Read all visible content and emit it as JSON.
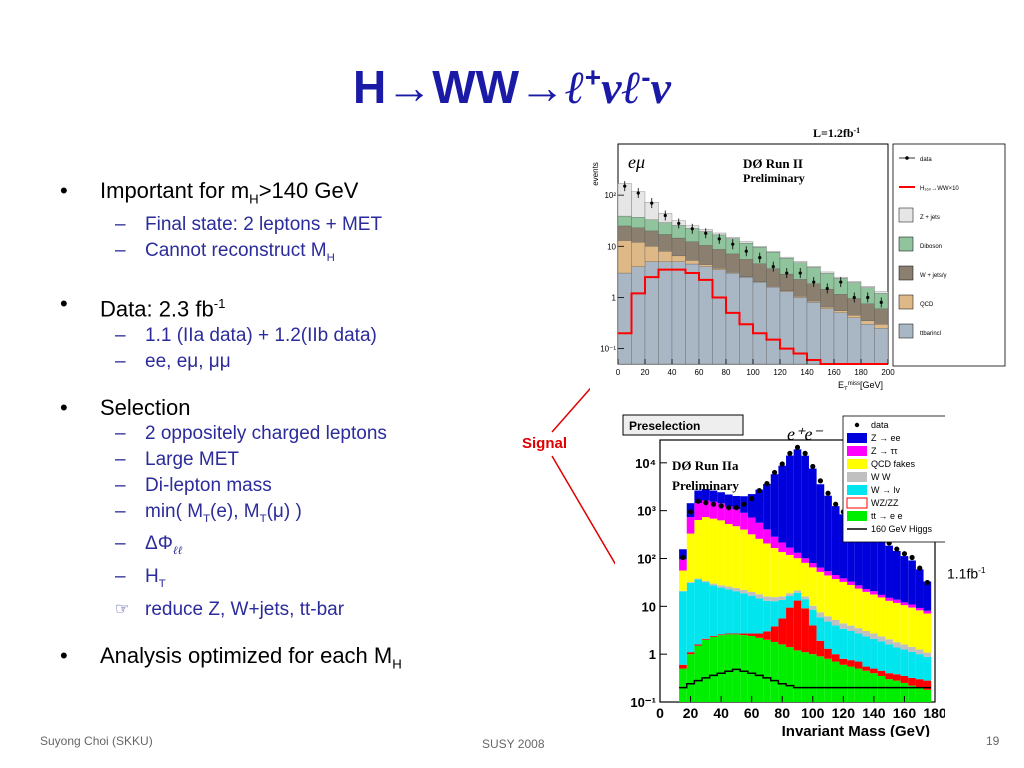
{
  "slide": {
    "title_main": "H→WW→",
    "title_l1": "ℓ",
    "title_plus": "+",
    "title_nu1": "ν",
    "title_l2": "ℓ",
    "title_minus": "-",
    "title_nu2": "ν"
  },
  "bullets": {
    "b1_main": "Important for m",
    "b1_sub": "H",
    "b1_tail": ">140 GeV",
    "b1_s1": "Final state: 2 leptons + MET",
    "b1_s2_main": "Cannot reconstruct M",
    "b1_s2_sub": "H",
    "b2_main": "Data: 2.3 fb",
    "b2_sup": "-1",
    "b2_s1": "1.1 (IIa data) + 1.2(IIb data)",
    "b2_s2": "ee, eμ, μμ",
    "b3_main": "Selection",
    "b3_s1": "2 oppositely charged leptons",
    "b3_s2": "Large MET",
    "b3_s3": "Di-lepton mass",
    "b3_s4_a": "min( M",
    "b3_s4_sub1": "T",
    "b3_s4_b": "(e), M",
    "b3_s4_sub2": "T",
    "b3_s4_c": "(μ) )",
    "b3_s5": "ΔΦ",
    "b3_s5_sub": "ℓℓ",
    "b3_s6": "H",
    "b3_s6_sub": "T",
    "b3_s7": "reduce Z, W+jets, tt-bar",
    "b4_main": "Analysis optimized for each M",
    "b4_sub": "H",
    "dash": "–",
    "hand": "☞"
  },
  "footer": {
    "author": "Suyong Choi (SKKU)",
    "conference": "SUSY 2008",
    "page": "19"
  },
  "annotations": {
    "signal": "Signal",
    "lumi_b_main": "1.1fb",
    "lumi_b_sup": "-1"
  },
  "colors": {
    "title": "#1a1aa6",
    "sub_bullet": "#2b2b9b",
    "signal": "#e00000"
  },
  "chart_data": [
    {
      "type": "area",
      "title": "",
      "top_label": "L=1.2fb",
      "top_label_sup": "-1",
      "channel": "eμ",
      "experiment": "DØ Run II",
      "status": "Preliminary",
      "ylabel": "events",
      "xlabel": "E",
      "xlabel_sub": "T",
      "xlabel_sup": "miss",
      "xlabel_unit": "[GeV]",
      "log_y": true,
      "x_ticks": [
        "0",
        "20",
        "40",
        "60",
        "80",
        "100",
        "120",
        "140",
        "160",
        "180",
        "200"
      ],
      "y_ticks": [
        "10²",
        "10",
        "1",
        "10⁻¹"
      ],
      "xlim": [
        0,
        200
      ],
      "ylim": [
        0.05,
        1000
      ],
      "x": [
        5,
        15,
        25,
        35,
        45,
        55,
        65,
        75,
        85,
        95,
        105,
        115,
        125,
        135,
        145,
        155,
        165,
        175,
        185,
        195
      ],
      "series": [
        {
          "name": "data",
          "values": [
            150,
            110,
            70,
            40,
            28,
            22,
            18,
            14,
            11,
            8,
            6,
            4,
            3,
            3,
            2,
            1.5,
            2,
            1,
            1,
            0.8
          ]
        },
        {
          "name": "H₁₆₀→WW×10",
          "values": [
            0.2,
            1.2,
            2.5,
            3.5,
            3.5,
            3.0,
            2.2,
            1.0,
            0.5,
            0.3,
            0.2,
            0.15,
            0.1,
            0.08,
            0.06,
            0.05,
            0.05,
            0.05,
            0.05,
            0.05
          ]
        },
        {
          "name": "Z + jets",
          "values": [
            130,
            80,
            40,
            15,
            6,
            3,
            2,
            1.5,
            1,
            0.8,
            0.5,
            0.4,
            0.3,
            0.3,
            0.2,
            0.2,
            0.15,
            0.1,
            0.1,
            0.1
          ]
        },
        {
          "name": "Diboson",
          "values": [
            14,
            14,
            13,
            12,
            11,
            10,
            9,
            8,
            7,
            6,
            5,
            4,
            3,
            2.5,
            2,
            1.5,
            1.2,
            1,
            0.8,
            0.6
          ]
        },
        {
          "name": "W + jets/γ",
          "values": [
            12,
            11,
            10,
            9,
            8,
            7,
            6,
            5,
            4,
            3,
            2.5,
            2,
            1.5,
            1.2,
            1,
            0.8,
            0.6,
            0.5,
            0.4,
            0.3
          ]
        },
        {
          "name": "QCD",
          "values": [
            10,
            8,
            5,
            3,
            1.5,
            0.8,
            0.4,
            0.2,
            0.1,
            0.05,
            0.05,
            0.05,
            0.05,
            0.05,
            0.05,
            0.05,
            0.05,
            0.05,
            0.05,
            0.05
          ]
        },
        {
          "name": "ttbarincl",
          "values": [
            3,
            4,
            5,
            5,
            5,
            4.5,
            4,
            3.5,
            3,
            2.5,
            2,
            1.6,
            1.3,
            1,
            0.8,
            0.6,
            0.5,
            0.4,
            0.3,
            0.25
          ]
        }
      ],
      "colors": {
        "data": "#000000",
        "signal": "#ff0000",
        "zjets": "#e6e6e6",
        "diboson": "#8fc49d",
        "wjets": "#8b8070",
        "qcd": "#deb887",
        "ttbar": "#a9b7c4"
      }
    },
    {
      "type": "area",
      "title": "",
      "box_label": "Preselection",
      "channel": "e⁺e⁻",
      "experiment": "DØ Run IIa",
      "status": "Preliminary",
      "xlabel": "Invariant Mass (GeV)",
      "log_y": true,
      "x_ticks": [
        "0",
        "20",
        "40",
        "60",
        "80",
        "100",
        "120",
        "140",
        "160",
        "180"
      ],
      "y_ticks": [
        "10⁻¹",
        "1",
        "10",
        "10²",
        "10³",
        "10⁴"
      ],
      "xlim": [
        0,
        180
      ],
      "ylim": [
        0.1,
        30000
      ],
      "x": [
        15,
        20,
        25,
        30,
        35,
        40,
        45,
        50,
        55,
        60,
        65,
        70,
        75,
        80,
        85,
        90,
        95,
        100,
        105,
        110,
        115,
        120,
        125,
        130,
        135,
        140,
        145,
        150,
        155,
        160,
        165,
        170,
        175
      ],
      "series": [
        {
          "name": "data",
          "values": [
            100,
            900,
            1500,
            1400,
            1300,
            1200,
            1100,
            1100,
            1300,
            1700,
            2500,
            3500,
            6000,
            9000,
            15000,
            20000,
            15000,
            8000,
            4000,
            2200,
            1300,
            900,
            700,
            500,
            350,
            300,
            250,
            200,
            150,
            120,
            100,
            60,
            30
          ]
        },
        {
          "name": "Z → ee",
          "values": [
            60,
            700,
            1200,
            1200,
            1100,
            1000,
            950,
            950,
            1100,
            1500,
            2200,
            3200,
            5500,
            8500,
            14000,
            19000,
            14000,
            7500,
            3500,
            2000,
            1200,
            800,
            650,
            450,
            300,
            260,
            210,
            170,
            130,
            100,
            80,
            50,
            25
          ]
        },
        {
          "name": "Z → ττ",
          "values": [
            40,
            400,
            800,
            900,
            850,
            800,
            700,
            600,
            500,
            400,
            300,
            200,
            120,
            80,
            50,
            30,
            20,
            15,
            12,
            10,
            8,
            6,
            5,
            4,
            3,
            3,
            2,
            2,
            2,
            1.5,
            1.5,
            1,
            1
          ]
        },
        {
          "name": "QCD fakes",
          "values": [
            35,
            300,
            600,
            700,
            650,
            600,
            500,
            450,
            380,
            300,
            240,
            190,
            150,
            120,
            100,
            80,
            65,
            55,
            45,
            38,
            32,
            28,
            24,
            20,
            17,
            15,
            13,
            11,
            10,
            9,
            8,
            7,
            6
          ]
        },
        {
          "name": "W W",
          "values": [
            0.5,
            1,
            1.5,
            2,
            2.5,
            3,
            3.2,
            3.4,
            3.4,
            3.3,
            3.2,
            3,
            2.8,
            2.6,
            2.4,
            2.2,
            2,
            1.8,
            1.6,
            1.4,
            1.2,
            1,
            0.9,
            0.8,
            0.7,
            0.6,
            0.5,
            0.45,
            0.4,
            0.35,
            0.3,
            0.25,
            0.2
          ]
        },
        {
          "name": "W → lv",
          "values": [
            20,
            30,
            35,
            30,
            25,
            22,
            20,
            18,
            16,
            14,
            12,
            10,
            9,
            8,
            7,
            6,
            5,
            4.5,
            4,
            3.5,
            3,
            2.6,
            2.3,
            2,
            1.8,
            1.6,
            1.4,
            1.2,
            1,
            0.9,
            0.8,
            0.7,
            0.6
          ]
        },
        {
          "name": "WZ/ZZ",
          "values": [
            0.1,
            0.1,
            0.1,
            0.1,
            0.1,
            0.1,
            0.1,
            0.1,
            0.2,
            0.3,
            0.5,
            1,
            2,
            4,
            8,
            12,
            8,
            3,
            1,
            0.5,
            0.3,
            0.2,
            0.2,
            0.2,
            0.1,
            0.1,
            0.1,
            0.1,
            0.1,
            0.1,
            0.1,
            0.1,
            0.1
          ]
        },
        {
          "name": "tt → e e",
          "values": [
            0.5,
            1,
            1.5,
            2,
            2.3,
            2.5,
            2.6,
            2.6,
            2.5,
            2.4,
            2.2,
            2,
            1.8,
            1.6,
            1.4,
            1.2,
            1.1,
            1,
            0.9,
            0.8,
            0.7,
            0.6,
            0.55,
            0.5,
            0.45,
            0.4,
            0.35,
            0.3,
            0.28,
            0.25,
            0.22,
            0.2,
            0.18
          ]
        },
        {
          "name": "160 GeV Higgs",
          "values": [
            0.1,
            0.12,
            0.14,
            0.16,
            0.18,
            0.2,
            0.22,
            0.24,
            0.22,
            0.2,
            0.18,
            0.16,
            0.14,
            0.12,
            0.11,
            0.1,
            0.1,
            0.1,
            0.1,
            0.1,
            0.1,
            0.1,
            0.1,
            0.1,
            0.1,
            0.1,
            0.1,
            0.1,
            0.1,
            0.1,
            0.1,
            0.1,
            0.1
          ]
        }
      ],
      "colors": {
        "data": "#000000",
        "zee": "#0000dd",
        "ztautau": "#ff00ff",
        "qcd": "#ffff00",
        "ww": "#c0c0c0",
        "wlv": "#00e5ee",
        "wzzz": "#ff0000",
        "tt": "#00ee00",
        "higgs": "#000000"
      }
    }
  ]
}
